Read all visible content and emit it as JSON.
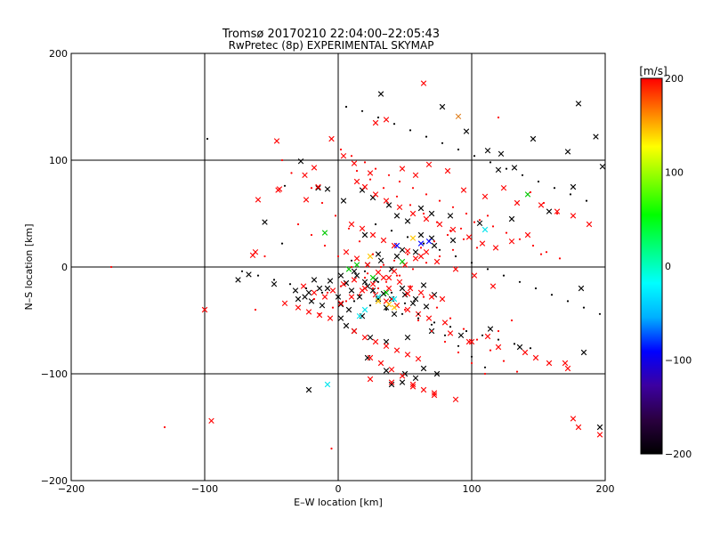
{
  "chart_data": {
    "type": "scatter",
    "title": "Tromsø 20170210 22:04:00–22:05:43",
    "subtitle": "RwPretec (8p) EXPERIMENTAL SKYMAP",
    "xlabel": "E–W location [km]",
    "ylabel": "N–S location [km]",
    "xlim": [
      -200,
      200
    ],
    "ylim": [
      -200,
      200
    ],
    "xticks": [
      -200,
      -100,
      0,
      100,
      200
    ],
    "yticks": [
      -200,
      -100,
      0,
      100,
      200
    ],
    "grid": true,
    "colorbar": {
      "label": "[m/s]",
      "min": -200,
      "max": 200,
      "ticks": [
        200,
        100,
        0,
        -100,
        -200
      ],
      "colormap": [
        "#000000",
        "#2a0040",
        "#3c00a0",
        "#0000ff",
        "#00b0ff",
        "#00ffff",
        "#00ff80",
        "#00ff00",
        "#80ff00",
        "#ffff00",
        "#ff8000",
        "#ff0000"
      ]
    },
    "series": [
      {
        "marker": "x",
        "color": "#000000",
        "x": [
          32,
          78,
          96,
          112,
          122,
          146,
          172,
          180,
          193,
          198,
          -28,
          -15,
          -8,
          -55,
          4,
          18,
          26,
          38,
          44,
          52,
          62,
          70,
          84,
          106,
          130,
          158,
          176,
          -75,
          -67,
          -48,
          -32,
          -25,
          -20,
          -12,
          6,
          10,
          16,
          22,
          28,
          34,
          40,
          48,
          56,
          64,
          72,
          -18,
          -8,
          0,
          2,
          8,
          14,
          20,
          26,
          30,
          36,
          42,
          50,
          58,
          66,
          -30,
          -22,
          -14,
          -6,
          2,
          12,
          22,
          32,
          44,
          58,
          72,
          86,
          2,
          6,
          12,
          24,
          36,
          52,
          70,
          92,
          114,
          136,
          184,
          22,
          36,
          50,
          64,
          74,
          40,
          48,
          58,
          -22,
          182,
          196,
          62,
          70,
          48,
          120,
          132,
          20,
          30,
          40,
          18
        ],
        "y": [
          162,
          150,
          127,
          109,
          106,
          120,
          108,
          153,
          122,
          94,
          99,
          74,
          73,
          42,
          62,
          72,
          65,
          58,
          48,
          43,
          55,
          50,
          48,
          41,
          45,
          52,
          75,
          -12,
          -7,
          -16,
          -22,
          -28,
          -32,
          -36,
          -15,
          -22,
          -28,
          -18,
          -12,
          -25,
          -30,
          -20,
          -34,
          -17,
          -26,
          -12,
          -20,
          -28,
          -35,
          -40,
          -8,
          -14,
          -22,
          -30,
          -38,
          -44,
          -26,
          -30,
          -37,
          -30,
          -24,
          -20,
          -13,
          -8,
          -4,
          2,
          6,
          10,
          14,
          20,
          25,
          -48,
          -55,
          -60,
          -66,
          -70,
          -66,
          -60,
          -64,
          -58,
          -75,
          -80,
          -85,
          -97,
          -100,
          -95,
          -100,
          -110,
          -108,
          -104,
          -115,
          -20,
          -150,
          30,
          27,
          16,
          91,
          93,
          30,
          12,
          -2,
          -46
        ]
      },
      {
        "marker": "x",
        "color": "#ff0000",
        "x": [
          64,
          36,
          28,
          -46,
          -18,
          -5,
          -15,
          -25,
          -24,
          -44,
          -45,
          -60,
          -62,
          -64,
          -100,
          4,
          12,
          24,
          48,
          58,
          68,
          82,
          94,
          110,
          124,
          134,
          152,
          164,
          176,
          188,
          14,
          20,
          28,
          36,
          46,
          56,
          66,
          76,
          86,
          98,
          108,
          118,
          130,
          142,
          10,
          18,
          26,
          34,
          42,
          52,
          62,
          74,
          88,
          102,
          116,
          6,
          14,
          22,
          30,
          38,
          46,
          54,
          62,
          70,
          78,
          -26,
          -18,
          -10,
          -4,
          4,
          12,
          20,
          28,
          36,
          44,
          52,
          60,
          68,
          80,
          -40,
          -30,
          -22,
          -14,
          -6,
          2,
          10,
          18,
          26,
          34,
          42,
          50,
          58,
          66,
          12,
          20,
          28,
          36,
          44,
          52,
          60,
          24,
          32,
          40,
          48,
          56,
          64,
          72,
          84,
          98,
          120,
          148,
          170,
          176,
          180,
          196,
          24,
          40,
          56,
          72,
          88,
          -95,
          38,
          52,
          100,
          112,
          140,
          158,
          172
        ],
        "y": [
          172,
          138,
          135,
          118,
          93,
          120,
          75,
          86,
          63,
          73,
          72,
          63,
          14,
          11,
          -40,
          104,
          97,
          88,
          92,
          86,
          96,
          90,
          72,
          66,
          74,
          60,
          58,
          52,
          48,
          40,
          80,
          75,
          68,
          62,
          56,
          50,
          45,
          40,
          35,
          28,
          22,
          18,
          24,
          30,
          40,
          36,
          30,
          25,
          20,
          15,
          10,
          5,
          -2,
          -8,
          -18,
          14,
          8,
          2,
          -5,
          -10,
          -14,
          -20,
          -24,
          -28,
          -30,
          -18,
          -24,
          -28,
          -22,
          -16,
          -12,
          -20,
          -26,
          -32,
          -36,
          -40,
          -44,
          -48,
          -52,
          -34,
          -38,
          -42,
          -45,
          -48,
          -34,
          -28,
          -22,
          -16,
          -10,
          -4,
          2,
          8,
          14,
          -60,
          -66,
          -70,
          -74,
          -78,
          -82,
          -86,
          -85,
          -90,
          -96,
          -102,
          -110,
          -115,
          -120,
          -62,
          -70,
          -75,
          -85,
          -90,
          -142,
          -150,
          -157,
          -105,
          -108,
          -112,
          -118,
          -124,
          -144,
          -20,
          -25,
          -70,
          -65,
          -80,
          -90,
          -95
        ]
      },
      {
        "marker": "x",
        "color": "#00e5ee",
        "x": [
          -8,
          16,
          20,
          30,
          110,
          42
        ],
        "y": [
          -110,
          -46,
          -40,
          -28,
          35,
          -30
        ]
      },
      {
        "marker": "x",
        "color": "#00c800",
        "x": [
          -10,
          14,
          142,
          8,
          26,
          36,
          48
        ],
        "y": [
          32,
          2,
          68,
          -2,
          -10,
          -24,
          5
        ]
      },
      {
        "marker": "x",
        "color": "#ffc800",
        "x": [
          38,
          42,
          30,
          24,
          56
        ],
        "y": [
          -35,
          -38,
          -32,
          10,
          27
        ]
      },
      {
        "marker": "x",
        "color": "#0000ff",
        "x": [
          62,
          68,
          44
        ],
        "y": [
          22,
          24,
          20
        ]
      },
      {
        "marker": "x",
        "color": "#e08020",
        "x": [
          90
        ],
        "y": [
          141
        ]
      },
      {
        "marker": "dot",
        "color": "#ff0000",
        "x": [
          -170,
          -130,
          -5,
          120,
          152,
          -62,
          -55,
          -42,
          -35,
          -20,
          -12,
          -2,
          8,
          16,
          26,
          34,
          44,
          54,
          64,
          74,
          84,
          94,
          104,
          114,
          124,
          134,
          144,
          154,
          164,
          2,
          10,
          20,
          28,
          38,
          46,
          56,
          66,
          76,
          86,
          96,
          106,
          116,
          126,
          136,
          146,
          156,
          166,
          -30,
          -20,
          -10,
          0,
          10,
          20,
          30,
          40,
          50,
          60,
          70,
          80,
          90,
          100,
          110,
          120,
          130,
          -18,
          -8,
          2,
          12,
          22,
          32,
          42,
          52,
          62,
          72,
          82,
          92,
          102,
          112,
          14,
          24,
          34,
          44,
          54,
          64,
          74,
          84,
          94,
          104,
          -14,
          -4,
          6,
          16,
          26,
          36,
          46,
          56,
          66,
          76,
          86
        ],
        "y": [
          0,
          -150,
          -170,
          140,
          12,
          -40,
          10,
          100,
          88,
          74,
          60,
          48,
          36,
          24,
          12,
          2,
          -8,
          -18,
          -28,
          -38,
          -48,
          -58,
          -68,
          -78,
          -88,
          -98,
          70,
          60,
          50,
          110,
          104,
          98,
          92,
          86,
          80,
          74,
          68,
          62,
          56,
          50,
          44,
          38,
          32,
          26,
          20,
          14,
          8,
          40,
          30,
          20,
          10,
          0,
          -10,
          -20,
          -30,
          -40,
          -50,
          -60,
          -70,
          -80,
          -90,
          -100,
          -60,
          -50,
          -30,
          -24,
          -18,
          -12,
          -6,
          0,
          6,
          12,
          18,
          24,
          30,
          36,
          42,
          48,
          90,
          82,
          74,
          66,
          58,
          50,
          42,
          34,
          26,
          18,
          -44,
          -38,
          -32,
          -26,
          -20,
          -14,
          -8,
          -2,
          4,
          10,
          16
        ]
      },
      {
        "marker": "dot",
        "color": "#000000",
        "x": [
          -98,
          -42,
          -40,
          6,
          18,
          30,
          42,
          54,
          66,
          78,
          90,
          102,
          114,
          126,
          138,
          150,
          162,
          174,
          186,
          -72,
          -60,
          -48,
          -36,
          -24,
          -12,
          0,
          12,
          24,
          36,
          48,
          60,
          72,
          84,
          96,
          108,
          120,
          132,
          144,
          28,
          40,
          52,
          64,
          76,
          88,
          100,
          112,
          124,
          136,
          148,
          160,
          172,
          184,
          196,
          10,
          20,
          30,
          40,
          50,
          60,
          70,
          80,
          90,
          100,
          110
        ],
        "y": [
          120,
          22,
          76,
          150,
          146,
          140,
          134,
          128,
          122,
          116,
          110,
          104,
          98,
          92,
          86,
          80,
          74,
          68,
          62,
          -4,
          -8,
          -12,
          -16,
          -20,
          -24,
          -28,
          -32,
          -36,
          -40,
          -44,
          -48,
          -52,
          -56,
          -60,
          -64,
          -68,
          -72,
          -76,
          40,
          34,
          28,
          22,
          16,
          10,
          4,
          -2,
          -8,
          -14,
          -20,
          -26,
          -32,
          -38,
          -44,
          6,
          -4,
          -14,
          -24,
          -34,
          -44,
          -54,
          -64,
          -74,
          -84,
          -94
        ]
      }
    ]
  }
}
